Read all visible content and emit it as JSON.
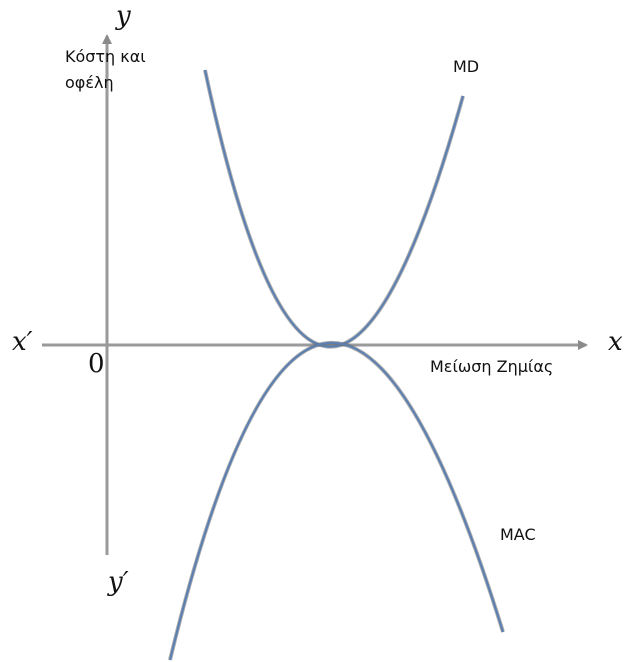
{
  "diagram": {
    "axes": {
      "x_end_label": "x",
      "x_start_label": "x′",
      "y_end_label": "y",
      "y_start_label": "y′",
      "origin_label": "0",
      "x_title": "Μείωση Ζημίας",
      "y_title_line1": "Κόστη και",
      "y_title_line2": "οφέλη"
    },
    "curves": [
      {
        "name": "MD",
        "label": "MD"
      },
      {
        "name": "MAC",
        "label": "MAC"
      }
    ]
  }
}
